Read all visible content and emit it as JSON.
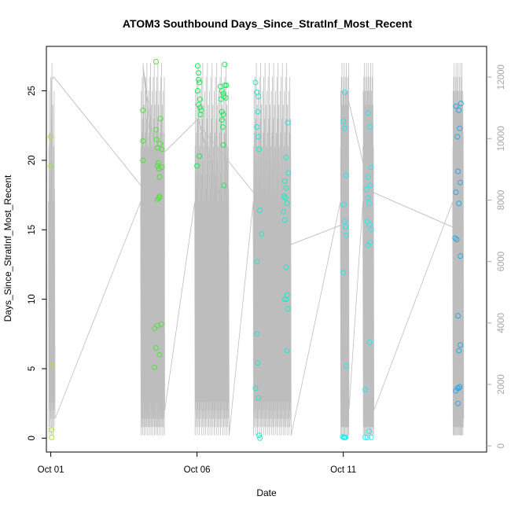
{
  "chart_data": {
    "type": "scatter",
    "title": "ATOM3 Southbound Days_Since_StratInf_Most_Recent",
    "xlabel": "Date",
    "ylabel": "Days_Since_StratInf_Most_Recent",
    "x_unit": "day of October",
    "xlim": [
      0.85,
      15.9
    ],
    "ylim": [
      -1.0,
      28.2
    ],
    "y_right_lim": [
      -200,
      13000
    ],
    "x_ticks": [
      {
        "value": 1,
        "label": "Oct 01"
      },
      {
        "value": 6,
        "label": "Oct 06"
      },
      {
        "value": 11,
        "label": "Oct 11"
      }
    ],
    "y_ticks": [
      0,
      5,
      10,
      15,
      20,
      25
    ],
    "y_right_ticks": [
      0,
      2000,
      4000,
      6000,
      8000,
      10000,
      12000
    ],
    "grid": false,
    "legend": "none",
    "colors": {
      "oct01": "#a6e234",
      "early": "#4fe03a",
      "mid": "#18e85a",
      "late": "#22e8c8",
      "oct11": "#22e8ec",
      "oct12": "#2ee6ee",
      "last": "#2aa8e6",
      "trace": "#bdbdbd",
      "right_axis": "#a6a6a6"
    },
    "groups": [
      {
        "color": "oct01",
        "points": [
          [
            1.0,
            21.7
          ],
          [
            1.0,
            19.6
          ],
          [
            1.05,
            5.2
          ],
          [
            1.03,
            0.6
          ],
          [
            1.03,
            0.05
          ]
        ]
      },
      {
        "color": "early",
        "points": [
          [
            4.15,
            23.6
          ],
          [
            4.15,
            21.4
          ],
          [
            4.15,
            20.0
          ],
          [
            4.6,
            27.1
          ],
          [
            4.6,
            22.2
          ],
          [
            4.62,
            21.5
          ],
          [
            4.65,
            20.9
          ],
          [
            4.65,
            19.6
          ],
          [
            4.68,
            19.8
          ],
          [
            4.7,
            19.4
          ],
          [
            4.72,
            18.8
          ],
          [
            4.72,
            17.4
          ],
          [
            4.75,
            23.0
          ],
          [
            4.75,
            21.2
          ],
          [
            4.8,
            20.8
          ],
          [
            4.8,
            19.5
          ],
          [
            4.65,
            17.2
          ],
          [
            4.7,
            17.3
          ],
          [
            4.55,
            7.9
          ],
          [
            4.55,
            5.1
          ],
          [
            4.6,
            6.5
          ],
          [
            4.65,
            8.1
          ],
          [
            4.78,
            8.2
          ],
          [
            4.72,
            6.0
          ]
        ]
      },
      {
        "color": "mid",
        "points": [
          [
            6.02,
            26.8
          ],
          [
            6.05,
            26.3
          ],
          [
            6.05,
            25.8
          ],
          [
            6.08,
            25.6
          ],
          [
            6.02,
            25.0
          ],
          [
            6.1,
            24.4
          ],
          [
            6.05,
            24.0
          ],
          [
            6.1,
            23.8
          ],
          [
            6.15,
            23.6
          ],
          [
            6.12,
            23.3
          ],
          [
            6.08,
            20.3
          ],
          [
            6.0,
            19.6
          ],
          [
            6.95,
            26.9
          ],
          [
            6.8,
            25.3
          ],
          [
            6.85,
            25.0
          ],
          [
            6.9,
            24.8
          ],
          [
            6.95,
            25.4
          ],
          [
            7.0,
            25.4
          ],
          [
            6.92,
            24.6
          ],
          [
            6.98,
            24.5
          ],
          [
            6.82,
            24.4
          ],
          [
            6.85,
            23.5
          ],
          [
            6.9,
            23.3
          ],
          [
            6.85,
            22.9
          ],
          [
            6.88,
            22.4
          ],
          [
            6.9,
            21.1
          ],
          [
            6.92,
            18.2
          ]
        ]
      },
      {
        "color": "late",
        "points": [
          [
            8.0,
            25.6
          ],
          [
            8.05,
            24.9
          ],
          [
            8.1,
            24.6
          ],
          [
            8.08,
            23.5
          ],
          [
            8.05,
            22.4
          ],
          [
            8.1,
            21.7
          ],
          [
            8.12,
            20.8
          ],
          [
            8.15,
            16.4
          ],
          [
            8.2,
            14.7
          ],
          [
            8.05,
            12.7
          ],
          [
            8.05,
            7.5
          ],
          [
            8.08,
            5.4
          ],
          [
            8.0,
            3.6
          ],
          [
            8.1,
            2.9
          ],
          [
            8.12,
            0.2
          ],
          [
            8.15,
            0.0
          ],
          [
            9.1,
            22.7
          ],
          [
            9.05,
            20.2
          ],
          [
            9.0,
            18.5
          ],
          [
            9.05,
            18.0
          ],
          [
            8.98,
            17.4
          ],
          [
            9.02,
            17.3
          ],
          [
            9.08,
            16.9
          ],
          [
            9.12,
            19.1
          ],
          [
            8.95,
            16.3
          ],
          [
            9.0,
            15.7
          ],
          [
            9.05,
            12.3
          ],
          [
            9.0,
            10.0
          ],
          [
            9.05,
            10.0
          ],
          [
            9.08,
            10.3
          ],
          [
            9.1,
            9.3
          ],
          [
            9.08,
            6.3
          ]
        ]
      },
      {
        "color": "oct11",
        "points": [
          [
            11.05,
            24.9
          ],
          [
            11.0,
            22.8
          ],
          [
            11.05,
            22.3
          ],
          [
            11.1,
            18.9
          ],
          [
            11.02,
            16.8
          ],
          [
            11.05,
            15.6
          ],
          [
            11.08,
            15.2
          ],
          [
            11.1,
            14.6
          ],
          [
            11.0,
            11.9
          ],
          [
            11.1,
            5.2
          ],
          [
            10.98,
            0.1
          ],
          [
            11.02,
            0.05
          ],
          [
            11.05,
            0.05
          ],
          [
            11.08,
            0.05
          ]
        ]
      },
      {
        "color": "oct12",
        "points": [
          [
            11.85,
            23.4
          ],
          [
            11.9,
            22.4
          ],
          [
            11.95,
            19.5
          ],
          [
            11.85,
            18.8
          ],
          [
            11.92,
            18.2
          ],
          [
            11.8,
            17.9
          ],
          [
            11.85,
            17.3
          ],
          [
            11.88,
            16.9
          ],
          [
            11.82,
            15.6
          ],
          [
            11.9,
            15.4
          ],
          [
            11.95,
            15.0
          ],
          [
            11.92,
            14.1
          ],
          [
            11.85,
            13.9
          ],
          [
            11.9,
            6.9
          ],
          [
            11.75,
            3.5
          ],
          [
            11.88,
            0.5
          ],
          [
            11.75,
            0.05
          ],
          [
            11.82,
            0.05
          ],
          [
            11.95,
            0.05
          ]
        ]
      },
      {
        "color": "last",
        "points": [
          [
            14.85,
            23.9
          ],
          [
            14.95,
            23.6
          ],
          [
            15.02,
            24.1
          ],
          [
            14.98,
            22.3
          ],
          [
            14.9,
            21.7
          ],
          [
            15.0,
            18.4
          ],
          [
            14.92,
            19.2
          ],
          [
            14.85,
            17.7
          ],
          [
            14.95,
            16.9
          ],
          [
            14.82,
            14.4
          ],
          [
            14.88,
            14.3
          ],
          [
            15.0,
            13.1
          ],
          [
            14.92,
            8.8
          ],
          [
            14.95,
            6.3
          ],
          [
            15.0,
            6.7
          ],
          [
            14.9,
            3.6
          ],
          [
            14.95,
            3.6
          ],
          [
            14.98,
            3.7
          ],
          [
            14.85,
            3.4
          ],
          [
            14.92,
            2.5
          ]
        ]
      }
    ]
  }
}
